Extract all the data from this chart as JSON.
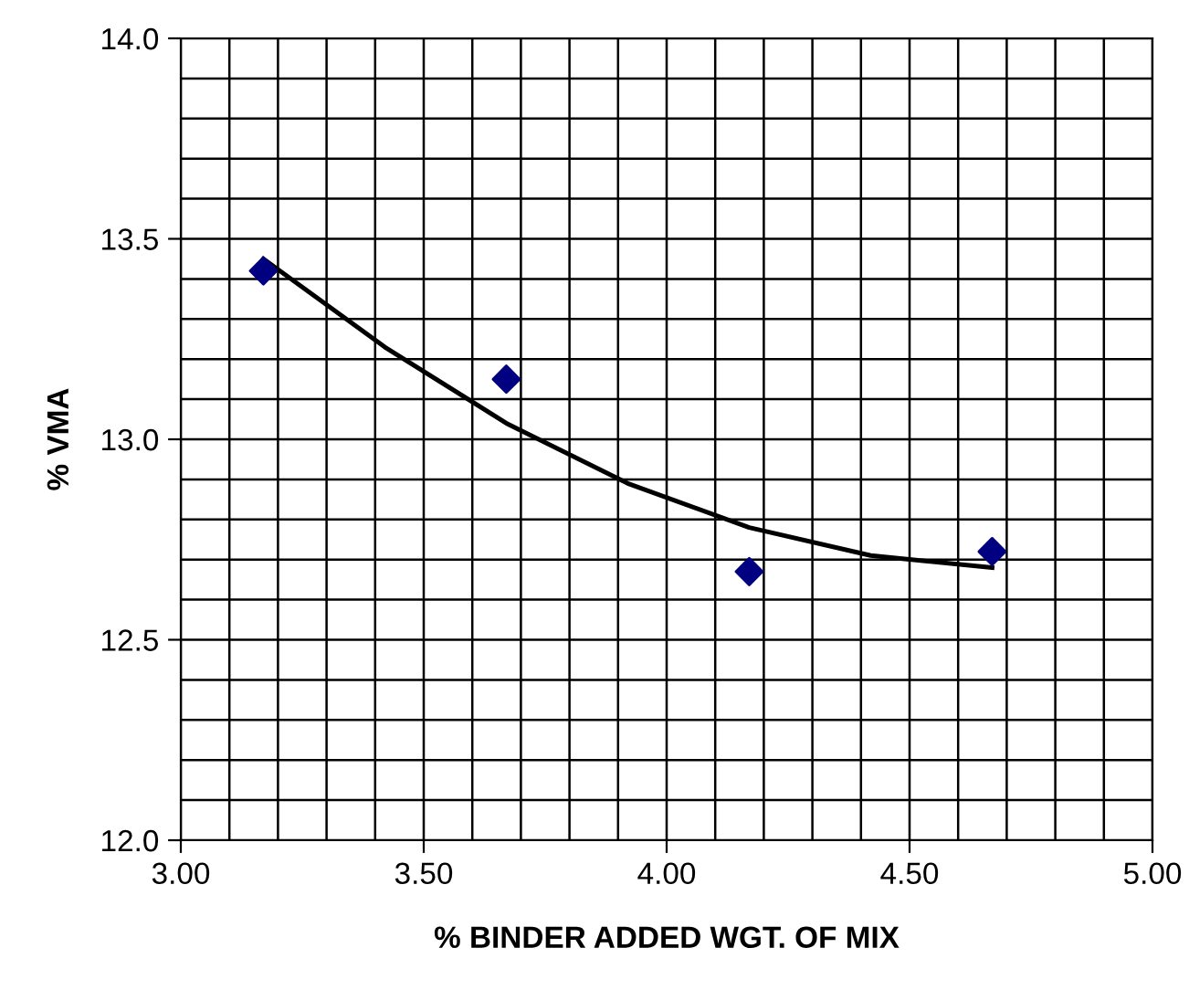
{
  "chart_data": {
    "type": "scatter",
    "xlabel": "% BINDER ADDED WGT. OF MIX",
    "ylabel": "% VMA",
    "series": [
      {
        "color": "#000080",
        "marker": "diamond",
        "x": [
          3.17,
          3.67,
          4.17,
          4.67
        ],
        "values": [
          13.42,
          13.15,
          12.67,
          12.72
        ]
      },
      {
        "type": "line",
        "color": "#000000",
        "marker": "none",
        "x": [
          3.17,
          3.42,
          3.67,
          3.92,
          4.17,
          4.42,
          4.67
        ],
        "values": [
          13.45,
          13.23,
          13.04,
          12.89,
          12.78,
          12.71,
          12.68
        ]
      }
    ],
    "xlim": [
      3.0,
      5.0
    ],
    "xticks": [
      {
        "value": 3.0,
        "label": "3.00"
      },
      {
        "value": 3.5,
        "label": "3.50"
      },
      {
        "value": 4.0,
        "label": "4.00"
      },
      {
        "value": 4.5,
        "label": "4.50"
      },
      {
        "value": 5.0,
        "label": "5.00"
      }
    ],
    "ylim": [
      12.0,
      14.0
    ],
    "yticks": [
      {
        "value": 12.0,
        "label": "12.0"
      },
      {
        "value": 12.5,
        "label": "12.5"
      },
      {
        "value": 13.0,
        "label": "13.0"
      },
      {
        "value": 13.5,
        "label": "13.5"
      },
      {
        "value": 14.0,
        "label": "14.0"
      }
    ],
    "grid": true
  }
}
